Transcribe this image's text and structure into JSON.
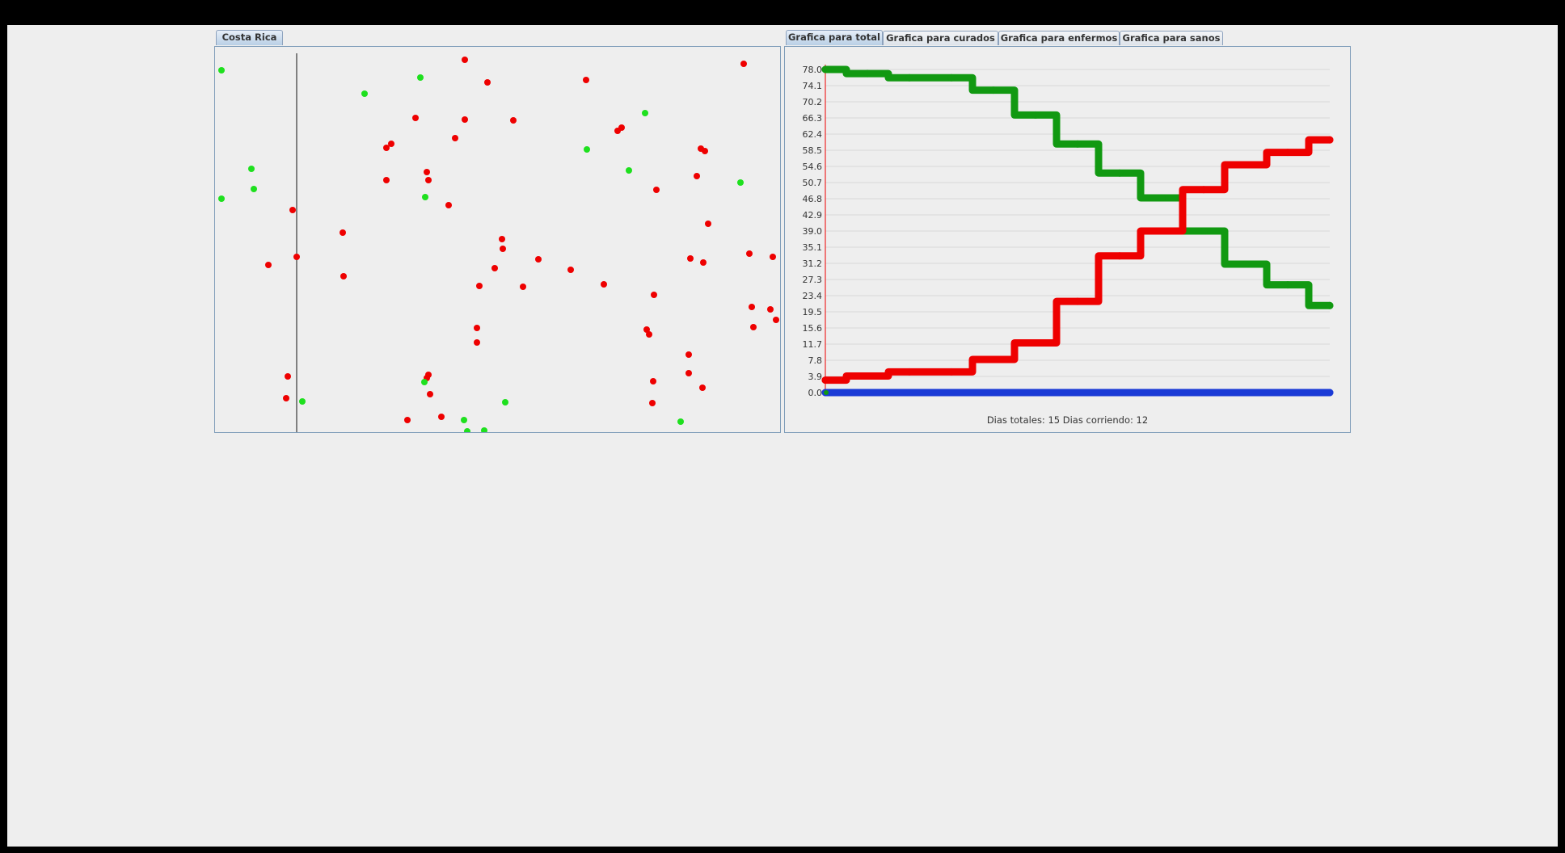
{
  "colors": {
    "sick": "#ee0000",
    "healthy": "#1ee01e",
    "healthy_line": "#119911",
    "cured_line": "#1a3ad6"
  },
  "left_tabs": [
    {
      "label": "Costa Rica",
      "selected": true
    }
  ],
  "right_tabs": [
    {
      "label": "Grafica para total",
      "selected": true
    },
    {
      "label": "Grafica para curados",
      "selected": false
    },
    {
      "label": "Grafica para enfermos",
      "selected": false
    },
    {
      "label": "Grafica para sanos",
      "selected": false
    }
  ],
  "status_text": "Dias totales: 15 Dias corriendo: 12",
  "chart_data": {
    "type": "line",
    "title": "",
    "xlabel": "",
    "ylabel": "",
    "ylim": [
      0,
      78
    ],
    "yticks": [
      "0.0",
      "3.9",
      "7.8",
      "11.7",
      "15.6",
      "19.5",
      "23.4",
      "27.3",
      "31.2",
      "35.1",
      "39.0",
      "42.9",
      "46.8",
      "50.7",
      "54.6",
      "58.5",
      "62.4",
      "66.3",
      "70.2",
      "74.1",
      "78.0"
    ],
    "x": [
      0,
      1,
      2,
      3,
      4,
      5,
      6,
      7,
      8,
      9,
      10,
      11,
      12
    ],
    "series": [
      {
        "name": "sanos",
        "color": "#119911",
        "values": [
          78,
          77,
          76,
          76,
          73,
          67,
          60,
          53,
          47,
          39,
          31,
          26,
          21
        ]
      },
      {
        "name": "enfermos",
        "color": "#ee0000",
        "values": [
          3,
          4,
          5,
          5,
          8,
          12,
          22,
          33,
          39,
          49,
          55,
          58,
          61
        ]
      },
      {
        "name": "curados",
        "color": "#1a3ad6",
        "values": [
          0,
          0,
          0,
          0,
          0,
          0,
          0,
          0,
          0,
          0,
          0,
          0,
          0
        ]
      }
    ]
  }
}
